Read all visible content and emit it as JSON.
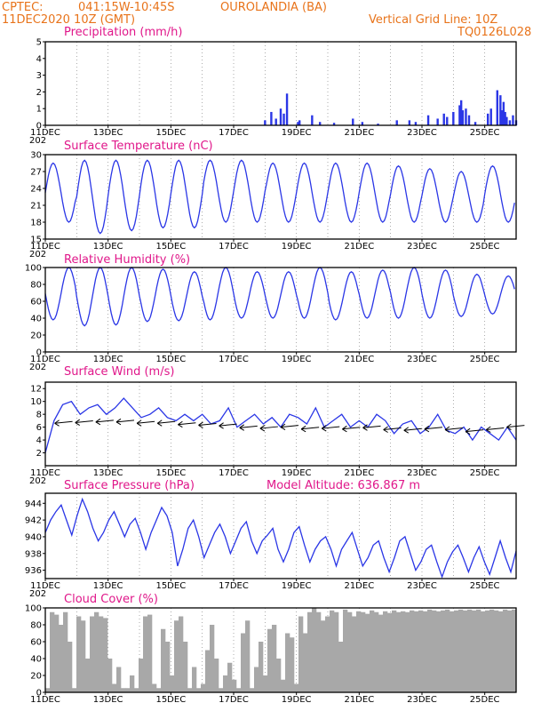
{
  "header": {
    "source": "CPTEC:",
    "coords": "041:15W-10:45S",
    "location": "OUROLANDIA (BA)",
    "run": "11DEC2020 10Z (GMT)",
    "grid_note": "Vertical Grid Line: 10Z",
    "code": "TQ0126L028"
  },
  "date_labels": [
    "11DEC",
    "13DEC",
    "15DEC",
    "17DEC",
    "19DEC",
    "21DEC",
    "23DEC",
    "25DEC"
  ],
  "year_stub": "202",
  "colors": {
    "header": "#e8731a",
    "title": "#e0178a",
    "line": "#2a36e6",
    "cloud": "#a8a8a8",
    "bar": "#2a36e6"
  },
  "chart_data": [
    {
      "type": "bar",
      "title": "Precipitation (mm/h)",
      "ylim": [
        0,
        5
      ],
      "yticks": [
        0,
        1,
        2,
        3,
        4,
        5
      ],
      "x_unit": "days since 11DEC 10Z",
      "x": [
        7.0,
        7.2,
        7.35,
        7.5,
        7.6,
        7.7,
        8.05,
        8.1,
        8.5,
        8.75,
        9.2,
        9.8,
        10.1,
        10.6,
        11.2,
        11.6,
        11.8,
        12.2,
        12.5,
        12.7,
        12.8,
        13.0,
        13.2,
        13.25,
        13.3,
        13.4,
        13.5,
        13.7,
        14.1,
        14.2,
        14.4,
        14.5,
        14.55,
        14.6,
        14.65,
        14.7,
        14.8,
        14.9,
        15.0
      ],
      "values": [
        0.3,
        0.8,
        0.4,
        1.0,
        0.7,
        1.9,
        0.2,
        0.3,
        0.6,
        0.2,
        0.15,
        0.4,
        0.2,
        0.1,
        0.3,
        0.3,
        0.2,
        0.6,
        0.4,
        0.7,
        0.5,
        0.8,
        1.2,
        1.5,
        0.9,
        1.0,
        0.6,
        0.2,
        0.7,
        1.0,
        2.1,
        1.8,
        0.9,
        1.4,
        0.8,
        0.5,
        0.3,
        0.6,
        0.3
      ]
    },
    {
      "type": "line",
      "title": "Surface Temperature (nC)",
      "ylim": [
        15,
        30
      ],
      "yticks": [
        15,
        18,
        21,
        24,
        27,
        30
      ],
      "min": [
        18,
        16,
        16.5,
        17,
        17,
        18,
        18,
        18,
        18,
        18,
        18,
        18,
        18,
        18,
        18,
        19.5
      ],
      "max": [
        28.5,
        29,
        29,
        29,
        29,
        29,
        29,
        28.5,
        28.5,
        28.5,
        28.5,
        28,
        27.5,
        27,
        28,
        28
      ]
    },
    {
      "type": "line",
      "title": "Relative Humidity (%)",
      "ylim": [
        0,
        100
      ],
      "yticks": [
        0,
        20,
        40,
        60,
        80,
        100
      ],
      "min": [
        38,
        31,
        32,
        36,
        37,
        38,
        40,
        40,
        40,
        38,
        40,
        40,
        40,
        42,
        45,
        48
      ],
      "max": [
        100,
        100,
        100,
        98,
        95,
        100,
        95,
        95,
        100,
        95,
        97,
        100,
        97,
        92,
        90,
        85
      ]
    },
    {
      "type": "line",
      "title": "Surface Wind (m/s)",
      "ylim": [
        0,
        13
      ],
      "yticks": [
        2,
        4,
        6,
        8,
        10,
        12
      ],
      "values": [
        2,
        7,
        9.5,
        10,
        8,
        9,
        9.5,
        8,
        9,
        10.5,
        9,
        7.5,
        8,
        9,
        7.5,
        7,
        8,
        7,
        8,
        6.5,
        7,
        9,
        6,
        7,
        8,
        6.5,
        7.5,
        6,
        8,
        7.5,
        6.5,
        9,
        6,
        7,
        8,
        6,
        7,
        6,
        8,
        7,
        5,
        6.5,
        7,
        5,
        6,
        8,
        5.5,
        5,
        6,
        4,
        6,
        5,
        4,
        6,
        4
      ],
      "arrows": [
        6.6,
        6.7,
        6.8,
        6.8,
        6.6,
        6.6,
        6.4,
        6.3,
        6.2,
        5.9,
        5.8,
        6.0,
        5.7,
        5.8,
        5.7,
        5.9,
        5.6,
        5.5,
        5.7,
        5.6,
        5.3,
        5.6,
        6.0
      ]
    },
    {
      "type": "line",
      "title": "Surface Pressure (hPa)",
      "annotation": "Model Altitude: 636.867 m",
      "ylim": [
        935,
        945.2
      ],
      "yticks": [
        936,
        938,
        940,
        942,
        944
      ],
      "values": [
        940.5,
        942,
        943,
        943.8,
        942,
        940.2,
        942.5,
        944.5,
        943,
        941,
        939.5,
        940.5,
        942,
        943,
        941.5,
        940,
        941.5,
        942.2,
        940.5,
        938.5,
        940.5,
        942,
        943.5,
        942.5,
        940.5,
        936.5,
        938.5,
        941,
        942,
        940,
        937.5,
        939,
        940.5,
        941.5,
        940,
        938,
        939.5,
        941,
        941.8,
        939.5,
        938,
        939.5,
        940.2,
        941,
        938.5,
        937,
        938.5,
        940.5,
        941.2,
        939,
        937,
        938.5,
        939.5,
        940,
        938.5,
        936.5,
        938.5,
        939.5,
        940.5,
        938.5,
        936.5,
        937.5,
        939,
        939.5,
        937.5,
        935.8,
        937.5,
        939.5,
        940,
        938,
        936,
        937,
        938.5,
        939,
        937,
        935.2,
        937,
        938.2,
        939,
        937.5,
        935.8,
        937.5,
        938.8,
        937,
        935.5,
        937.5,
        939.5,
        937.5,
        935.8,
        938.3
      ],
      "values_per_day": 6
    },
    {
      "type": "area",
      "title": "Cloud Cover (%)",
      "ylim": [
        0,
        100
      ],
      "yticks": [
        0,
        20,
        40,
        60,
        80,
        100
      ],
      "values": [
        5,
        95,
        92,
        80,
        95,
        60,
        5,
        90,
        85,
        40,
        90,
        95,
        90,
        88,
        40,
        10,
        30,
        5,
        5,
        20,
        5,
        40,
        90,
        92,
        10,
        5,
        75,
        60,
        20,
        85,
        90,
        60,
        5,
        30,
        5,
        10,
        50,
        80,
        40,
        5,
        20,
        35,
        15,
        5,
        70,
        85,
        5,
        30,
        60,
        20,
        75,
        80,
        40,
        15,
        70,
        65,
        10,
        90,
        70,
        95,
        100,
        95,
        85,
        90,
        97,
        95,
        60,
        98,
        95,
        90,
        96,
        95,
        93,
        97,
        95,
        92,
        96,
        94,
        97,
        95,
        96,
        95,
        97,
        96,
        97,
        96,
        98,
        97,
        96,
        97,
        98,
        96,
        97,
        98,
        97,
        98,
        97,
        98,
        96,
        97,
        98,
        97,
        96,
        98,
        97,
        98
      ]
    }
  ]
}
